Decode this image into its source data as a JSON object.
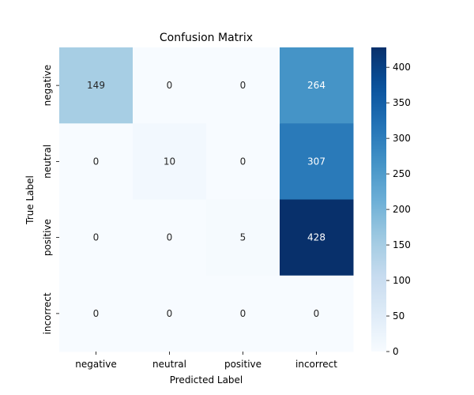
{
  "chart_data": {
    "type": "heatmap",
    "title": "Confusion Matrix",
    "xlabel": "Predicted Label",
    "ylabel": "True Label",
    "x_categories": [
      "negative",
      "neutral",
      "positive",
      "incorrect"
    ],
    "y_categories": [
      "negative",
      "neutral",
      "positive",
      "incorrect"
    ],
    "values": [
      [
        149,
        0,
        0,
        264
      ],
      [
        0,
        10,
        0,
        307
      ],
      [
        0,
        0,
        5,
        428
      ],
      [
        0,
        0,
        0,
        0
      ]
    ],
    "colormap": "Blues",
    "vmin": 0,
    "vmax": 428,
    "colorbar_ticks": [
      0,
      50,
      100,
      150,
      200,
      250,
      300,
      350,
      400
    ],
    "annotations": true
  }
}
